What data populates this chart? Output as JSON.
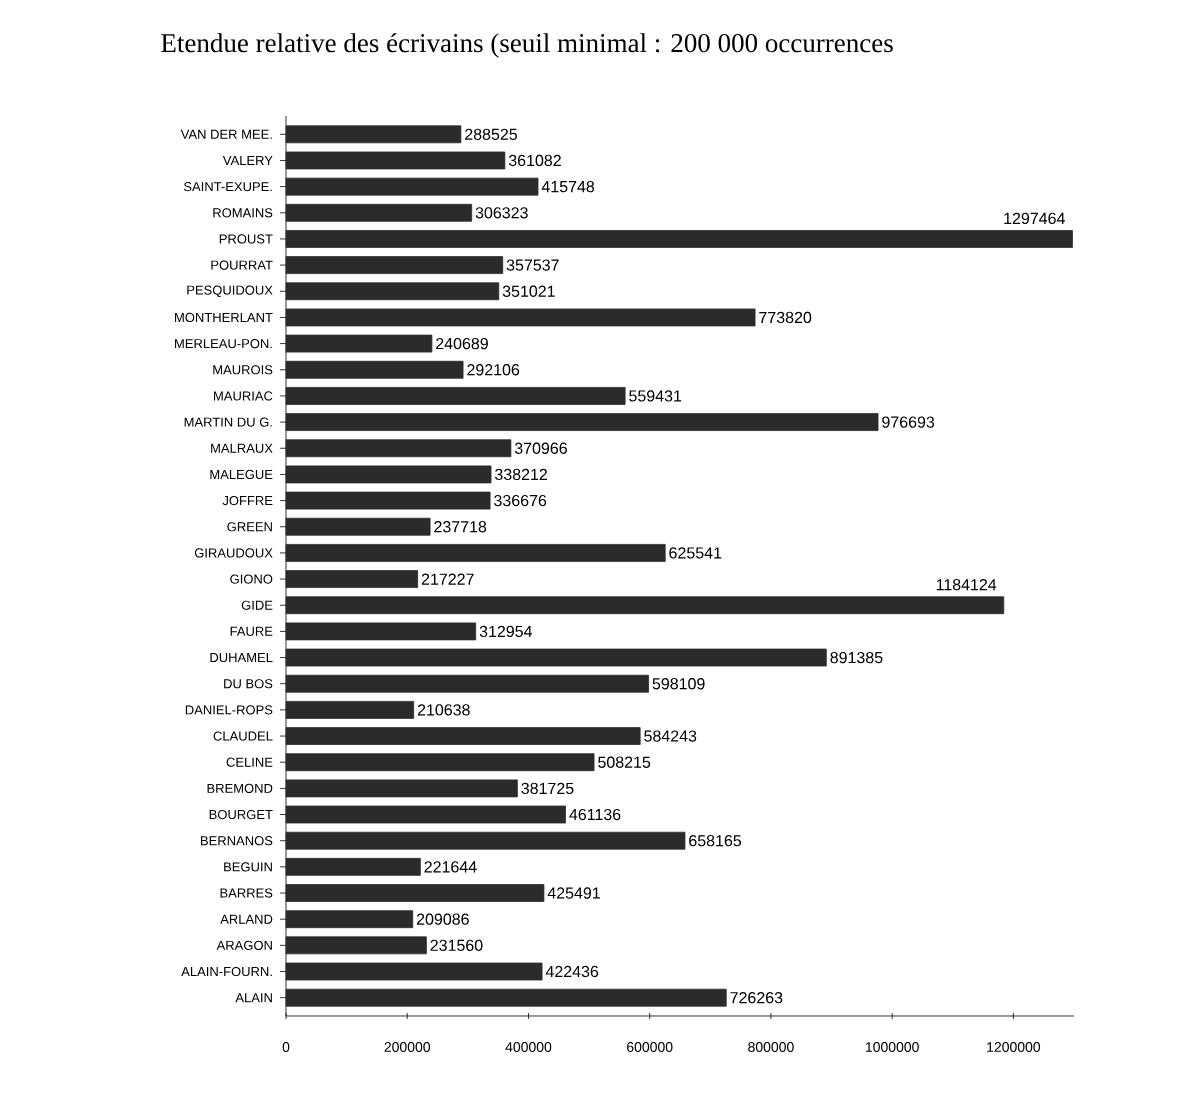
{
  "chart_data": {
    "type": "bar",
    "orientation": "horizontal",
    "title": "Etendue relative des écrivains (seuil minimal : 200 000 occurrences",
    "categories": [
      "VAN DER MEE.",
      "VALERY",
      "SAINT-EXUPE.",
      "ROMAINS",
      "PROUST",
      "POURRAT",
      "PESQUIDOUX",
      "MONTHERLANT",
      "MERLEAU-PON.",
      "MAUROIS",
      "MAURIAC",
      "MARTIN DU G.",
      "MALRAUX",
      "MALEGUE",
      "JOFFRE",
      "GREEN",
      "GIRAUDOUX",
      "GIONO",
      "GIDE",
      "FAURE",
      "DUHAMEL",
      "DU BOS",
      "DANIEL-ROPS",
      "CLAUDEL",
      "CELINE",
      "BREMOND",
      "BOURGET",
      "BERNANOS",
      "BEGUIN",
      "BARRES",
      "ARLAND",
      "ARAGON",
      "ALAIN-FOURN.",
      "ALAIN"
    ],
    "values": [
      288525,
      361082,
      415748,
      306323,
      1297464,
      357537,
      351021,
      773820,
      240689,
      292106,
      559431,
      976693,
      370966,
      338212,
      336676,
      237718,
      625541,
      217227,
      1184124,
      312954,
      891385,
      598109,
      210638,
      584243,
      508215,
      381725,
      461136,
      658165,
      221644,
      425491,
      209086,
      231560,
      422436,
      726263
    ],
    "color": "#2b2b2b",
    "data_labels": true,
    "xlim": [
      0,
      1300000
    ],
    "xticks": [
      0,
      200000,
      400000,
      600000,
      800000,
      1000000,
      1200000
    ]
  }
}
